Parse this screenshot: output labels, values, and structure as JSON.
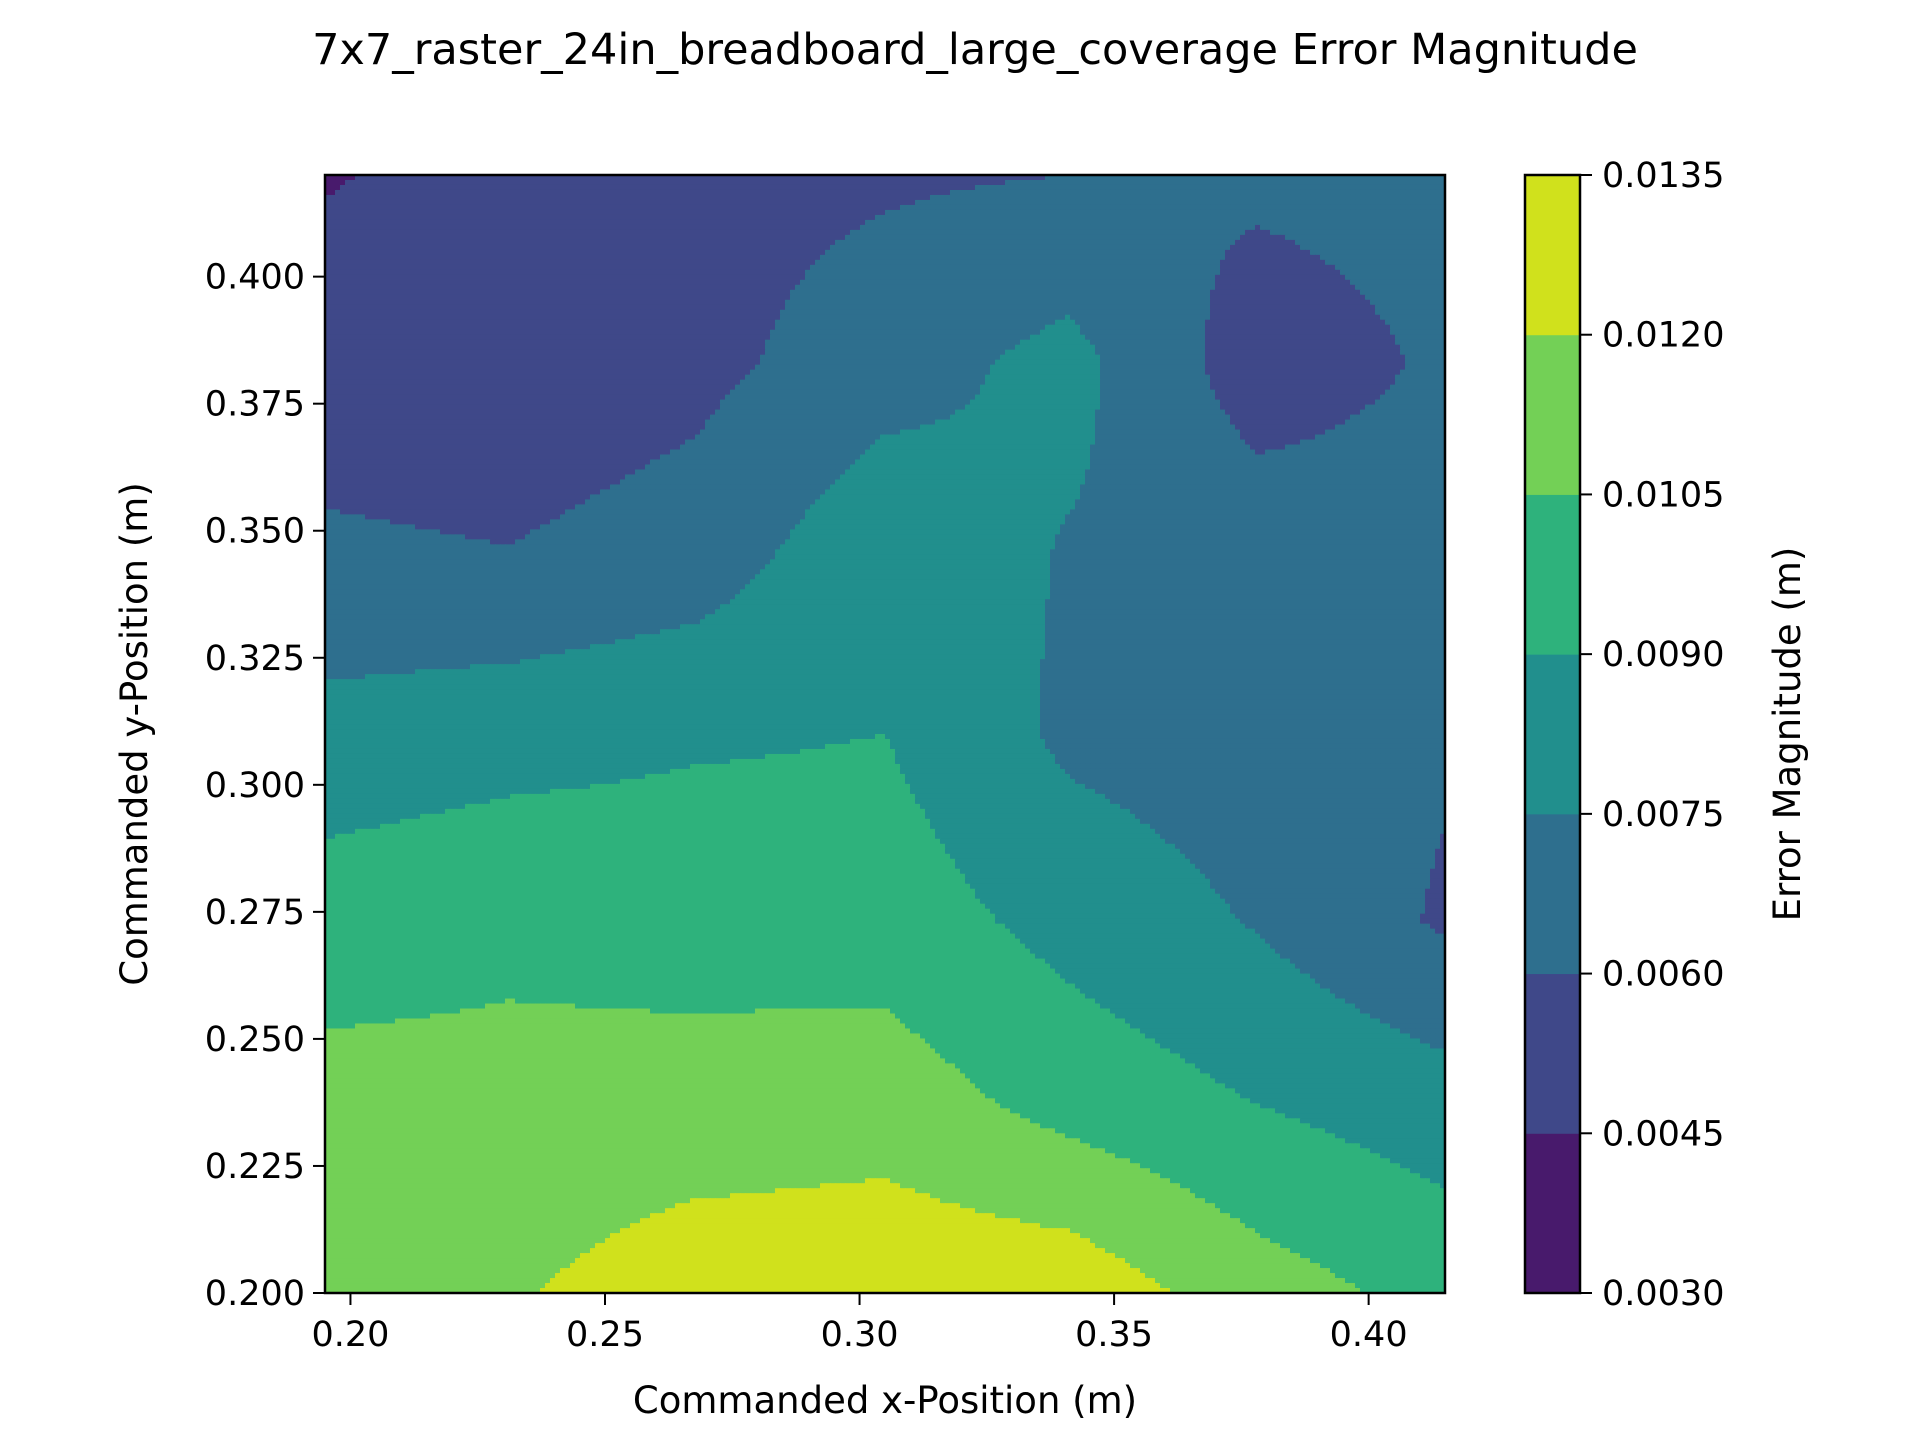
{
  "chart_data": {
    "type": "heatmap",
    "subtype": "filled-contour",
    "title": "7x7_raster_24in_breadboard_large_coverage Error Magnitude",
    "xlabel": "Commanded x-Position (m)",
    "ylabel": "Commanded y-Position (m)",
    "xlim": [
      0.195,
      0.415
    ],
    "ylim": [
      0.2,
      0.42
    ],
    "xticks": [
      "0.20",
      "0.25",
      "0.30",
      "0.35",
      "0.40"
    ],
    "yticks": [
      "0.200",
      "0.225",
      "0.250",
      "0.275",
      "0.300",
      "0.325",
      "0.350",
      "0.375",
      "0.400"
    ],
    "colorbar": {
      "label": "Error Magnitude (m)",
      "range": [
        0.003,
        0.0135
      ],
      "levels": [
        "0.0030",
        "0.0045",
        "0.0060",
        "0.0075",
        "0.0090",
        "0.0105",
        "0.0120",
        "0.0135"
      ],
      "colors": [
        "#481a6c",
        "#3f4889",
        "#2e6f8e",
        "#218f8d",
        "#2eb27c",
        "#73d056",
        "#d0e11c"
      ]
    },
    "grid_x": [
      0.195,
      0.231,
      0.268,
      0.305,
      0.341,
      0.378,
      0.415
    ],
    "grid_y": [
      0.2,
      0.237,
      0.273,
      0.31,
      0.347,
      0.383,
      0.42
    ],
    "values": [
      [
        0.0115,
        0.0118,
        0.013,
        0.0131,
        0.013,
        0.0112,
        0.01
      ],
      [
        0.011,
        0.0109,
        0.011,
        0.0113,
        0.01,
        0.009,
        0.0082
      ],
      [
        0.0098,
        0.0102,
        0.01,
        0.0098,
        0.0085,
        0.0074,
        0.0058
      ],
      [
        0.008,
        0.0084,
        0.0088,
        0.009,
        0.0072,
        0.0067,
        0.0062
      ],
      [
        0.0062,
        0.006,
        0.0066,
        0.0086,
        0.0074,
        0.0068,
        0.0066
      ],
      [
        0.0052,
        0.005,
        0.0056,
        0.0068,
        0.008,
        0.0052,
        0.0062
      ],
      [
        0.0044,
        0.005,
        0.0055,
        0.0058,
        0.006,
        0.0063,
        0.0065
      ]
    ]
  }
}
